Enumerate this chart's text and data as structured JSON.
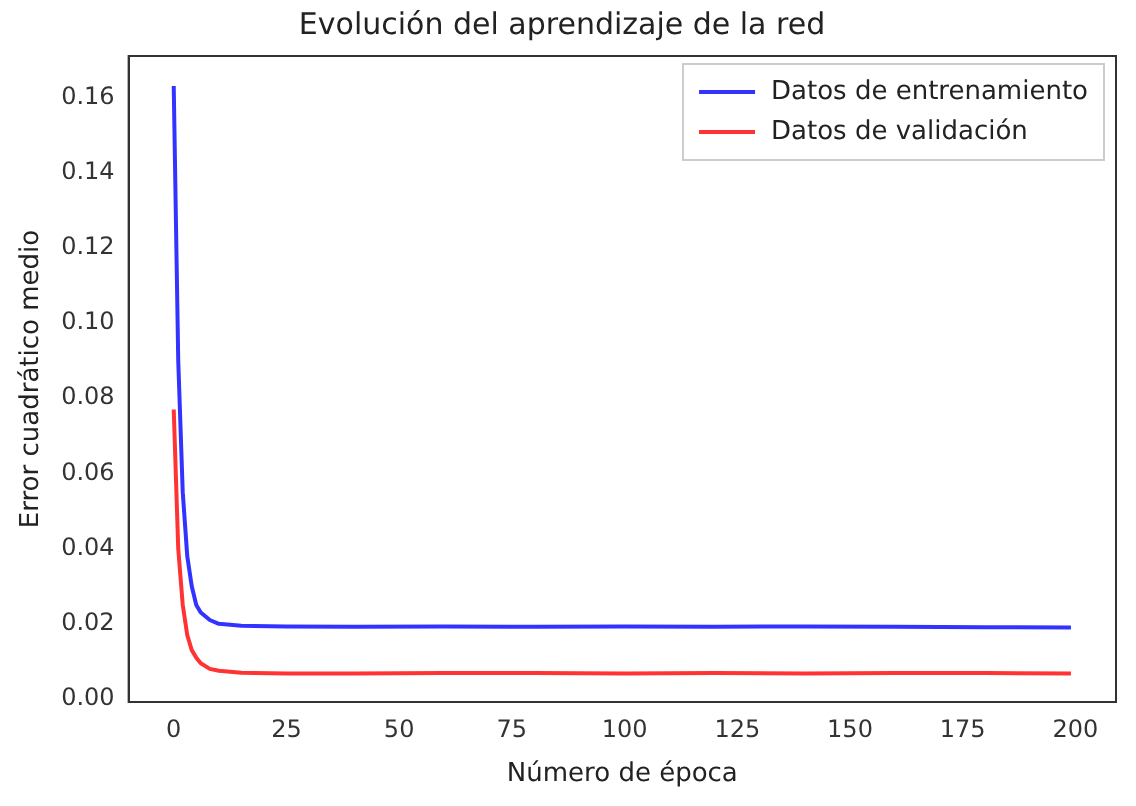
{
  "chart_data": {
    "type": "line",
    "title": "Evolución del aprendizaje de la red",
    "xlabel": "Número de época",
    "ylabel": "Error cuadrático medio",
    "xlim": [
      -10,
      209
    ],
    "xticks": [
      0,
      25,
      50,
      75,
      100,
      125,
      150,
      175,
      200
    ],
    "ylim": [
      -0.0008,
      0.171
    ],
    "yticks": [
      {
        "value": 0,
        "label": "0.00"
      },
      {
        "value": 0.02,
        "label": "0.02"
      },
      {
        "value": 0.04,
        "label": "0.04"
      },
      {
        "value": 0.06,
        "label": "0.06"
      },
      {
        "value": 0.08,
        "label": "0.08"
      },
      {
        "value": 0.1,
        "label": "0.10"
      },
      {
        "value": 0.12,
        "label": "0.12"
      },
      {
        "value": 0.14,
        "label": "0.14"
      },
      {
        "value": 0.16,
        "label": "0.16"
      }
    ],
    "legend": "top right",
    "grid": false,
    "marker": "none",
    "line_style": "solid",
    "series": [
      {
        "name": "Datos de entrenamiento",
        "color": "#3333ff",
        "x": [
          0,
          1,
          2,
          3,
          4,
          5,
          6,
          8,
          10,
          15,
          25,
          40,
          60,
          80,
          100,
          120,
          140,
          160,
          180,
          199
        ],
        "values": [
          0.163,
          0.09,
          0.055,
          0.038,
          0.03,
          0.025,
          0.023,
          0.021,
          0.02,
          0.0195,
          0.0193,
          0.0192,
          0.0193,
          0.0192,
          0.0193,
          0.0192,
          0.0193,
          0.0192,
          0.0191,
          0.019
        ]
      },
      {
        "name": "Datos de validación",
        "color": "#ff3333",
        "x": [
          0,
          1,
          2,
          3,
          4,
          5,
          6,
          8,
          10,
          15,
          25,
          40,
          60,
          80,
          100,
          120,
          140,
          160,
          180,
          199
        ],
        "values": [
          0.077,
          0.04,
          0.025,
          0.017,
          0.013,
          0.011,
          0.0095,
          0.008,
          0.0075,
          0.007,
          0.0068,
          0.0068,
          0.0069,
          0.0069,
          0.0068,
          0.0069,
          0.0068,
          0.0069,
          0.0069,
          0.0068
        ]
      }
    ]
  }
}
